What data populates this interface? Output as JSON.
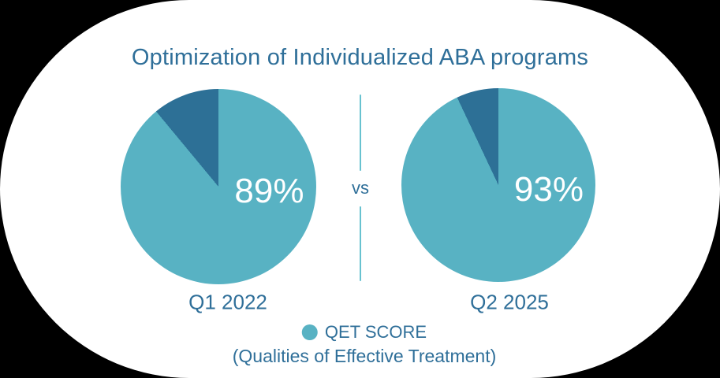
{
  "vs_label": "vs",
  "legend": {
    "label": "QET SCORE",
    "sublabel": "(Qualities of Effective Treatment)"
  },
  "colors": {
    "page_bg": "#000000",
    "card_bg": "#ffffff",
    "primary_teal": "#58b2c3",
    "dark_slice": "#2d7096",
    "text_blue": "#2f6f99",
    "divider_teal": "#68c2d0",
    "percent_white": "#ffffff"
  },
  "chart_data": {
    "type": "pie",
    "title": "Optimization of Individualized ABA programs",
    "legend_position": "bottom",
    "legend_entries": [
      "QET SCORE"
    ],
    "charts": [
      {
        "label": "Q1 2022",
        "center_label": "89%",
        "slices": [
          {
            "name": "QET SCORE",
            "value": 89,
            "color": "#58b2c3"
          },
          {
            "name": "remainder",
            "value": 11,
            "color": "#2d7096"
          }
        ]
      },
      {
        "label": "Q2 2025",
        "center_label": "93%",
        "slices": [
          {
            "name": "QET SCORE",
            "value": 93,
            "color": "#58b2c3"
          },
          {
            "name": "remainder",
            "value": 7,
            "color": "#2d7096"
          }
        ]
      }
    ]
  }
}
